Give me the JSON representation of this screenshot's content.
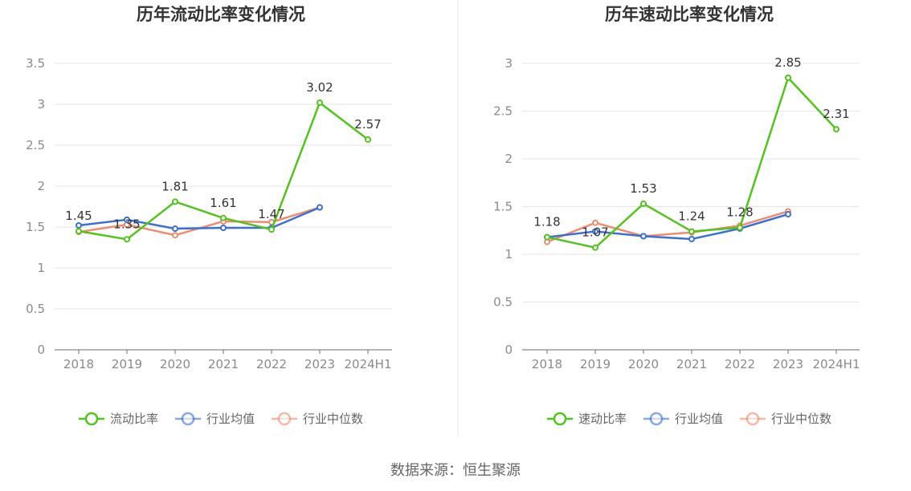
{
  "source": "数据来源：恒生聚源",
  "chart_data": [
    {
      "type": "line",
      "title": "历年流动比率变化情况",
      "categories": [
        "2018",
        "2019",
        "2020",
        "2021",
        "2022",
        "2023",
        "2024H1"
      ],
      "ylim": [
        0,
        3.5
      ],
      "yticks": [
        "0",
        "0.5",
        "1",
        "1.5",
        "2",
        "2.5",
        "3",
        "3.5"
      ],
      "series": [
        {
          "name": "流动比率",
          "color": "#52c41a",
          "values": [
            1.45,
            1.35,
            1.81,
            1.61,
            1.47,
            3.02,
            2.57
          ],
          "labels": [
            "1.45",
            "1.35",
            "1.81",
            "1.61",
            "1.47",
            "3.02",
            "2.57"
          ]
        },
        {
          "name": "行业均值",
          "color": "#3a6fd8",
          "values": [
            1.52,
            1.59,
            1.48,
            1.49,
            1.49,
            1.74,
            null
          ]
        },
        {
          "name": "行业中位数",
          "color": "#f08c6c",
          "values": [
            1.44,
            1.53,
            1.4,
            1.57,
            1.56,
            1.74,
            null
          ]
        }
      ]
    },
    {
      "type": "line",
      "title": "历年速动比率变化情况",
      "categories": [
        "2018",
        "2019",
        "2020",
        "2021",
        "2022",
        "2023",
        "2024H1"
      ],
      "ylim": [
        0,
        3
      ],
      "yticks": [
        "0",
        "0.5",
        "1",
        "1.5",
        "2",
        "2.5",
        "3"
      ],
      "series": [
        {
          "name": "速动比率",
          "color": "#52c41a",
          "values": [
            1.18,
            1.07,
            1.53,
            1.24,
            1.28,
            2.85,
            2.31
          ],
          "labels": [
            "1.18",
            "1.07",
            "1.53",
            "1.24",
            "1.28",
            "2.85",
            "2.31"
          ]
        },
        {
          "name": "行业均值",
          "color": "#3a6fd8",
          "values": [
            1.18,
            1.24,
            1.19,
            1.16,
            1.27,
            1.42,
            null
          ]
        },
        {
          "name": "行业中位数",
          "color": "#f08c6c",
          "values": [
            1.13,
            1.33,
            1.19,
            1.23,
            1.3,
            1.45,
            null
          ]
        }
      ]
    }
  ]
}
